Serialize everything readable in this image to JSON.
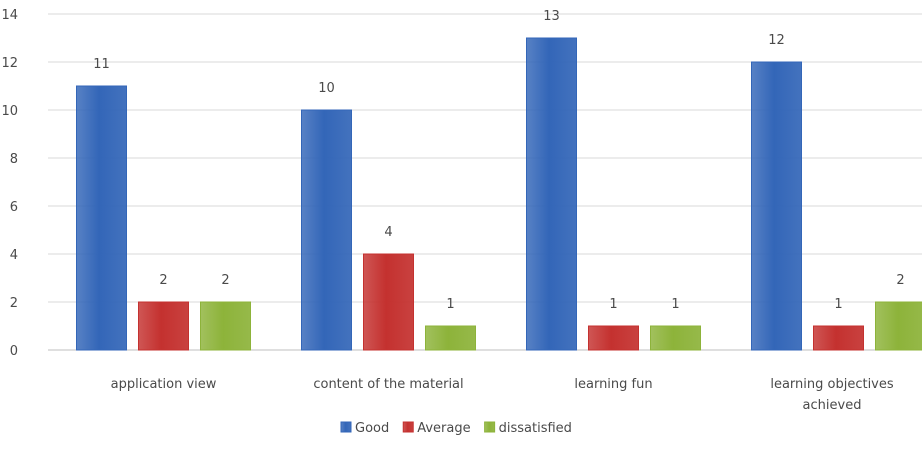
{
  "chart_data": {
    "type": "bar",
    "categories": [
      "application view",
      "content of the material",
      "learning fun",
      "learning objectives achieved"
    ],
    "series": [
      {
        "name": "Good",
        "values": [
          11,
          10,
          13,
          12
        ],
        "color": "#3366b8"
      },
      {
        "name": "Average",
        "values": [
          2,
          4,
          1,
          1
        ],
        "color": "#c4312f"
      },
      {
        "name": "dissatisfied",
        "values": [
          2,
          1,
          1,
          2
        ],
        "color": "#8db33a"
      }
    ],
    "ylim": [
      0,
      14
    ],
    "yticks": [
      0,
      2,
      4,
      6,
      8,
      10,
      12,
      14
    ],
    "grid": true,
    "legend": "bottom",
    "data_labels": true
  }
}
